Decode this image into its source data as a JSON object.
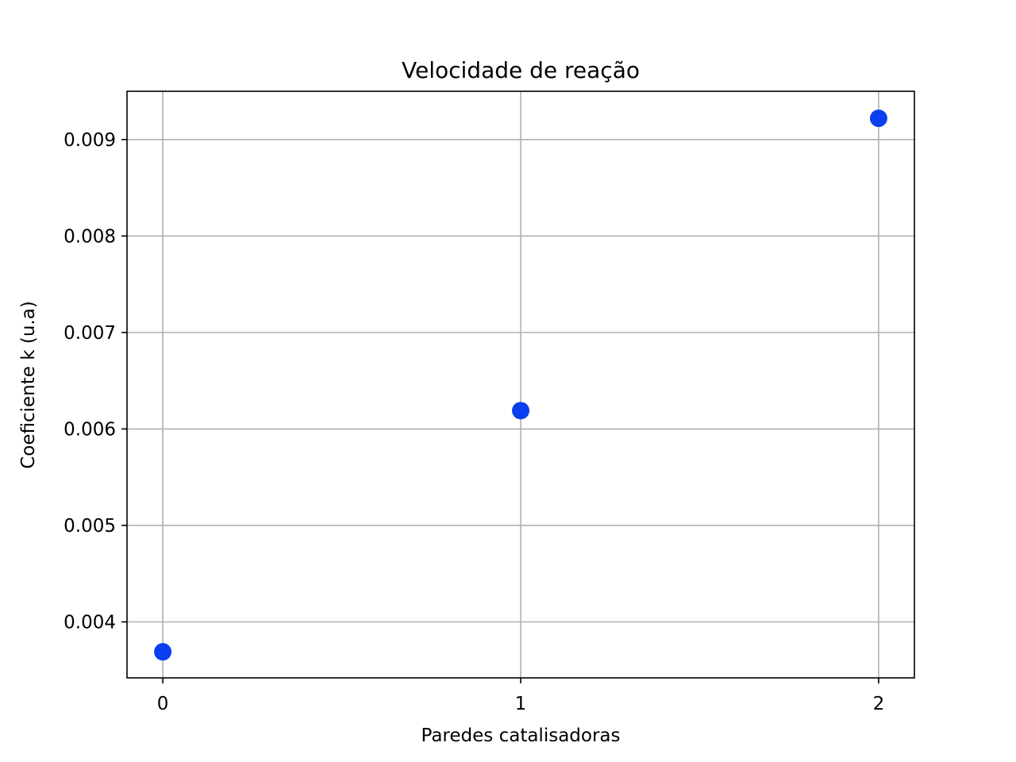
{
  "chart_data": {
    "type": "scatter",
    "title": "Velocidade de reação",
    "xlabel": "Paredes catalisadoras",
    "ylabel": "Coeficiente k (u.a)",
    "x_ticks": [
      "0",
      "1",
      "2"
    ],
    "y_ticks": [
      "0.004",
      "0.005",
      "0.006",
      "0.007",
      "0.008",
      "0.009"
    ],
    "xlim": [
      -0.1,
      2.1
    ],
    "ylim": [
      0.00342,
      0.0095
    ],
    "grid": true,
    "series": [
      {
        "color": "#0a3ff0",
        "points": [
          {
            "x": 0,
            "y": 0.00369
          },
          {
            "x": 1,
            "y": 0.00619
          },
          {
            "x": 2,
            "y": 0.00922
          }
        ]
      }
    ]
  }
}
